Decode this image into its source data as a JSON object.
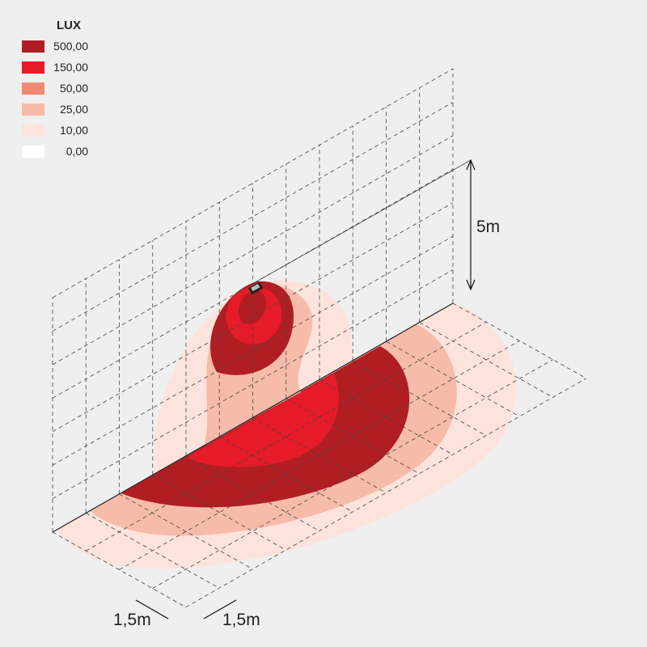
{
  "legend": {
    "title": "LUX",
    "items": [
      {
        "label": "500,00",
        "color": "#b01e23"
      },
      {
        "label": "150,00",
        "color": "#e51b2a"
      },
      {
        "label": "50,00",
        "color": "#ee8a72"
      },
      {
        "label": "25,00",
        "color": "#f6bba9"
      },
      {
        "label": "10,00",
        "color": "#fde3dc"
      },
      {
        "label": "0,00",
        "color": "#ffffff"
      }
    ]
  },
  "dimensions": {
    "height": "5m",
    "spacing_left": "1,5m",
    "spacing_right": "1,5m"
  }
}
